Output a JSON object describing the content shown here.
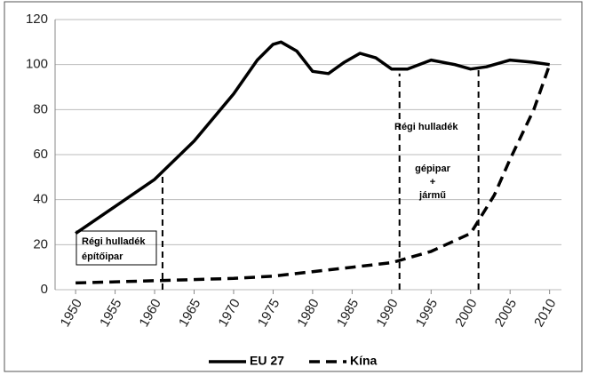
{
  "chart_data": {
    "type": "line",
    "xlim": [
      1947.4,
      2011.5
    ],
    "xticks": [
      1950,
      1955,
      1960,
      1965,
      1970,
      1975,
      1980,
      1985,
      1990,
      1995,
      2000,
      2005,
      2010
    ],
    "ylim": [
      0,
      120
    ],
    "yticks": [
      0,
      20,
      40,
      60,
      80,
      100,
      120
    ],
    "grid": true,
    "legend": "bottom",
    "series": [
      {
        "name": "EU 27",
        "color": "#000000",
        "style": "solid",
        "x": [
          1950,
          1955,
          1960,
          1965,
          1970,
          1973,
          1975,
          1976,
          1978,
          1980,
          1982,
          1984,
          1986,
          1988,
          1990,
          1992,
          1995,
          1998,
          2000,
          2002,
          2005,
          2008,
          2010
        ],
        "values": [
          25,
          37,
          49,
          66,
          87,
          102,
          109,
          110,
          106,
          97,
          96,
          101,
          105,
          103,
          98,
          98,
          102,
          100,
          98,
          99,
          102,
          101,
          100
        ]
      },
      {
        "name": "Kína",
        "color": "#000000",
        "style": "dashed",
        "x": [
          1950,
          1960,
          1970,
          1975,
          1980,
          1985,
          1990,
          1995,
          2000,
          2003,
          2005,
          2008,
          2010
        ],
        "values": [
          3,
          4,
          5,
          6,
          8,
          10,
          12,
          17,
          25,
          42,
          58,
          80,
          100
        ]
      }
    ],
    "markers": [
      {
        "x": 1961,
        "y": 53
      },
      {
        "x": 1991,
        "y": 96
      },
      {
        "x": 2001,
        "y": 98
      }
    ],
    "annotations": [
      {
        "lines": [
          "Régi hulladék",
          "építőipar"
        ]
      },
      {
        "lines": [
          "Régi hulladék"
        ]
      },
      {
        "lines": [
          "gépipar",
          "+",
          "jármű"
        ]
      }
    ]
  }
}
